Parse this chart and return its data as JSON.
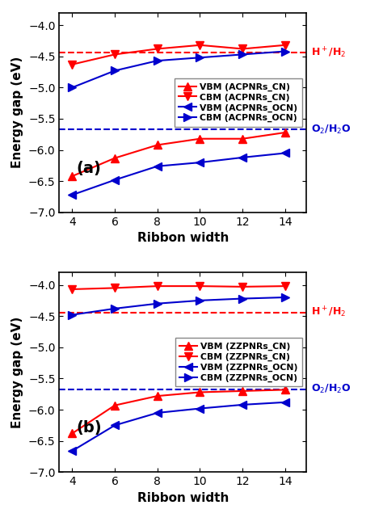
{
  "x": [
    4,
    6,
    8,
    10,
    12,
    14
  ],
  "panel_a": {
    "VBM_CN": [
      -6.42,
      -6.13,
      -5.92,
      -5.82,
      -5.82,
      -5.72
    ],
    "CBM_CN": [
      -4.63,
      -4.47,
      -4.38,
      -4.32,
      -4.38,
      -4.32
    ],
    "VBM_OCN": [
      -6.72,
      -6.48,
      -6.26,
      -6.2,
      -6.12,
      -6.05
    ],
    "CBM_OCN": [
      -5.0,
      -4.73,
      -4.57,
      -4.52,
      -4.47,
      -4.42
    ]
  },
  "panel_b": {
    "VBM_CN": [
      -6.38,
      -5.93,
      -5.78,
      -5.72,
      -5.7,
      -5.68
    ],
    "CBM_CN": [
      -4.07,
      -4.05,
      -4.02,
      -4.02,
      -4.03,
      -4.02
    ],
    "VBM_OCN": [
      -6.66,
      -6.25,
      -6.05,
      -5.98,
      -5.92,
      -5.88
    ],
    "CBM_OCN": [
      -4.48,
      -4.38,
      -4.3,
      -4.25,
      -4.22,
      -4.2
    ]
  },
  "hline_red_a": -4.44,
  "hline_blue_a": -5.67,
  "hline_red_b": -4.44,
  "hline_blue_b": -5.67,
  "red_color": "#ff0000",
  "blue_color": "#0000cd",
  "ylim": [
    -7.0,
    -3.8
  ],
  "yticks": [
    -7.0,
    -6.5,
    -6.0,
    -5.5,
    -5.0,
    -4.5,
    -4.0
  ],
  "xlabel": "Ribbon width",
  "ylabel": "Energy gap (eV)",
  "label_a": "(a)",
  "label_b": "(b)",
  "legend_a_labels": [
    "VBM (ACPNRs_CN)",
    "CBM (ACPNRs_CN)",
    "VBM (ACPNRs_OCN)",
    "CBM (ACPNRs_OCN)"
  ],
  "legend_b_labels": [
    "VBM (ZZPNRs_CN)",
    "CBM (ZZPNRs_CN)",
    "VBM (ZZPNRs_OCN)",
    "CBM (ZZPNRs_OCN)"
  ],
  "hplus_h2": "H$^+$/H$_2$",
  "o2_h2o": "O$_2$/H$_2$O"
}
